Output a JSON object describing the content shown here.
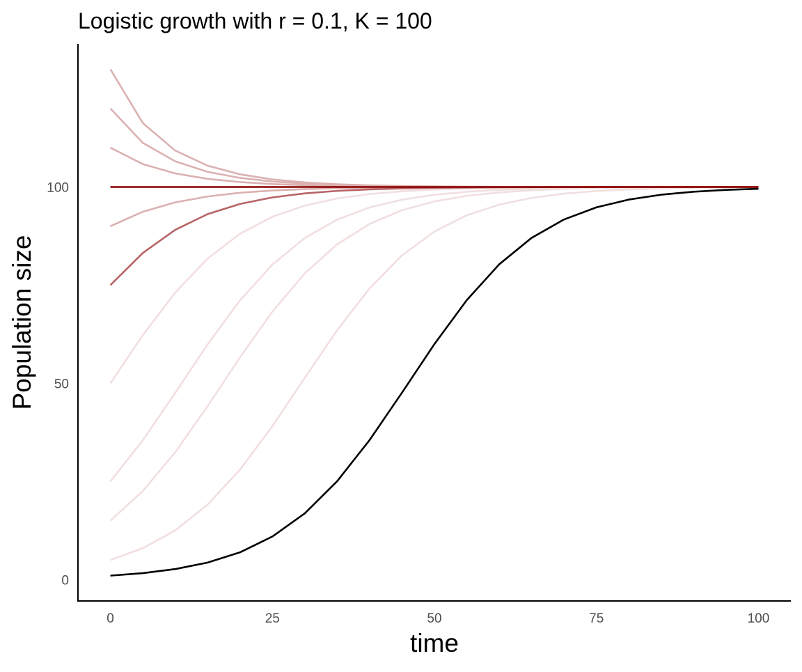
{
  "chart_data": {
    "type": "line",
    "title": "Logistic growth with r = 0.1, K = 100",
    "x_label": "time",
    "y_label": "Population size",
    "x": [
      0,
      5,
      10,
      15,
      20,
      25,
      30,
      35,
      40,
      45,
      50,
      55,
      60,
      65,
      70,
      75,
      80,
      85,
      90,
      95,
      100
    ],
    "xlim": [
      -5,
      105
    ],
    "xticks": [
      0,
      25,
      50,
      75,
      100
    ],
    "ylim": [
      -5.45,
      136.45
    ],
    "yticks": [
      0,
      50,
      100
    ],
    "grid": false,
    "series": [
      {
        "color": "#f1dfe0",
        "values": [
          50,
          62.25,
          73.11,
          81.76,
          88.08,
          92.41,
          95.26,
          97.07,
          98.2,
          98.9,
          99.33,
          99.59,
          99.75,
          99.85,
          99.91,
          99.94,
          99.97,
          99.98,
          99.99,
          99.99,
          100
        ]
      },
      {
        "color": "#f1dfe0",
        "values": [
          25,
          35.47,
          47.54,
          59.9,
          71.12,
          80.24,
          87,
          91.69,
          94.79,
          96.77,
          98.02,
          98.79,
          99.26,
          99.55,
          99.73,
          99.83,
          99.9,
          99.94,
          99.96,
          99.98,
          99.99
        ]
      },
      {
        "color": "#f1dfe0",
        "values": [
          15,
          22.54,
          32.42,
          44.16,
          56.6,
          68.25,
          78,
          85.39,
          90.6,
          94.08,
          96.32,
          97.74,
          98.61,
          99.16,
          99.49,
          99.69,
          99.81,
          99.88,
          99.93,
          99.96,
          99.97
        ]
      },
      {
        "color": "#f1dfe0",
        "values": [
          5,
          7.98,
          12.52,
          19.09,
          28,
          39.07,
          51.39,
          63.54,
          74.18,
          82.57,
          88.65,
          92.79,
          95.5,
          97.22,
          98.3,
          98.96,
          99.37,
          99.61,
          99.77,
          99.86,
          99.91
        ]
      },
      {
        "color": "#dbb1b1",
        "values": [
          130,
          116.28,
          109.28,
          105.43,
          103.22,
          101.93,
          101.16,
          100.7,
          100.42,
          100.26,
          100.16,
          100.09,
          100.06,
          100.03,
          100.02,
          100.01,
          100.01,
          100,
          100,
          100,
          100
        ]
      },
      {
        "color": "#dbb1b1",
        "values": [
          120,
          111.25,
          106.53,
          103.86,
          102.31,
          101.39,
          100.84,
          100.51,
          100.31,
          100.19,
          100.11,
          100.07,
          100.04,
          100.03,
          100.02,
          100.01,
          100.01,
          100,
          100,
          100,
          100
        ]
      },
      {
        "color": "#dbb1b1",
        "values": [
          110,
          105.84,
          103.46,
          102.07,
          101.25,
          100.75,
          100.45,
          100.28,
          100.17,
          100.1,
          100.06,
          100.04,
          100.02,
          100.01,
          100.01,
          100,
          100,
          100,
          100,
          100,
          100
        ]
      },
      {
        "color": "#dbb1b1",
        "values": [
          90,
          93.69,
          96.07,
          97.58,
          98.52,
          99.1,
          99.45,
          99.67,
          99.8,
          99.88,
          99.93,
          99.95,
          99.97,
          99.98,
          99.99,
          99.99,
          100,
          100,
          100,
          100,
          100
        ]
      },
      {
        "color": "#b86465",
        "values": [
          75,
          83.18,
          89.08,
          93.08,
          95.68,
          97.34,
          98.37,
          99,
          99.39,
          99.63,
          99.78,
          99.86,
          99.92,
          99.95,
          99.97,
          99.98,
          99.99,
          99.99,
          100,
          100,
          100
        ]
      },
      {
        "color": "#8b0000",
        "values": [
          100,
          100,
          100,
          100,
          100,
          100,
          100,
          100,
          100,
          100,
          100,
          100,
          100,
          100,
          100,
          100,
          100,
          100,
          100,
          100,
          100
        ]
      },
      {
        "color": "#000000",
        "values": [
          1,
          1.64,
          2.67,
          4.33,
          6.94,
          10.96,
          16.87,
          25.07,
          35.54,
          47.62,
          59.98,
          71.2,
          80.3,
          87.04,
          91.72,
          94.81,
          96.79,
          98.03,
          98.79,
          99.26,
          99.55
        ]
      }
    ]
  }
}
